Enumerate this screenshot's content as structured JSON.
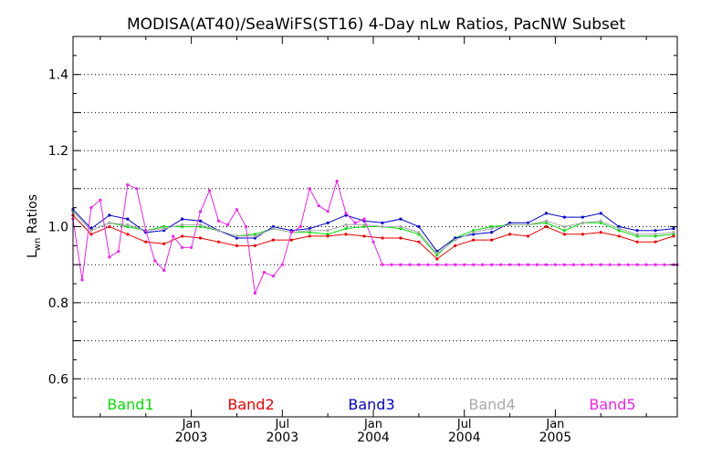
{
  "chart_data": {
    "type": "line",
    "title": "MODISA(AT40)/SeaWiFS(ST16) 4-Day nLw Ratios, PacNW Subset",
    "ylabel_main": "L",
    "ylabel_sub": "wn",
    "ylabel_rest": " Ratios",
    "ylim": [
      0.5,
      1.5
    ],
    "xlim": [
      2002.35,
      2005.67
    ],
    "grid": "horizontal-dotted",
    "yticks": [
      {
        "value": 0.6,
        "label": "0.6"
      },
      {
        "value": 0.8,
        "label": "0.8"
      },
      {
        "value": 1.0,
        "label": "1.0"
      },
      {
        "value": 1.2,
        "label": "1.2"
      },
      {
        "value": 1.4,
        "label": "1.4"
      }
    ],
    "ygrid": [
      0.6,
      0.7,
      0.8,
      0.9,
      1.0,
      1.1,
      1.2,
      1.3,
      1.4
    ],
    "xticks": [
      {
        "value": 2003.0,
        "month": "Jan",
        "year": "2003"
      },
      {
        "value": 2003.5,
        "month": "Jul",
        "year": "2003"
      },
      {
        "value": 2004.0,
        "month": "Jan",
        "year": "2004"
      },
      {
        "value": 2004.5,
        "month": "Jul",
        "year": "2004"
      },
      {
        "value": 2005.0,
        "month": "Jan",
        "year": "2005"
      }
    ],
    "x": [
      2002.35,
      2002.4,
      2002.45,
      2002.5,
      2002.55,
      2002.6,
      2002.65,
      2002.7,
      2002.75,
      2002.8,
      2002.85,
      2002.9,
      2002.95,
      2003.0,
      2003.05,
      2003.1,
      2003.15,
      2003.2,
      2003.25,
      2003.3,
      2003.35,
      2003.4,
      2003.45,
      2003.5,
      2003.55,
      2003.6,
      2003.65,
      2003.7,
      2003.75,
      2003.8,
      2003.85,
      2003.9,
      2003.95,
      2004.0,
      2004.05,
      2004.1,
      2004.15,
      2004.2,
      2004.25,
      2004.3,
      2004.35,
      2004.4,
      2004.45,
      2004.5,
      2004.55,
      2004.6,
      2004.65,
      2004.7,
      2004.75,
      2004.8,
      2004.85,
      2004.9,
      2004.95,
      2005.0,
      2005.05,
      2005.1,
      2005.15,
      2005.2,
      2005.25,
      2005.3,
      2005.35,
      2005.4,
      2005.45,
      2005.5,
      2005.55,
      2005.6,
      2005.65,
      2005.67
    ],
    "series": [
      {
        "name": "Band1",
        "color": "#00dd00",
        "x": [
          2002.35,
          2002.45,
          2002.55,
          2002.65,
          2002.75,
          2002.85,
          2002.95,
          2003.05,
          2003.15,
          2003.25,
          2003.35,
          2003.45,
          2003.55,
          2003.65,
          2003.75,
          2003.85,
          2003.95,
          2004.05,
          2004.15,
          2004.25,
          2004.35,
          2004.45,
          2004.55,
          2004.65,
          2004.75,
          2004.85,
          2004.95,
          2005.05,
          2005.15,
          2005.25,
          2005.35,
          2005.45,
          2005.55,
          2005.65
        ],
        "values": [
          1.04,
          0.99,
          1.01,
          1.0,
          0.99,
          1.0,
          1.0,
          1.0,
          0.99,
          0.975,
          0.98,
          0.995,
          0.985,
          0.985,
          0.98,
          0.995,
          1.0,
          1.0,
          0.995,
          0.98,
          0.925,
          0.97,
          0.99,
          1.0,
          1.005,
          1.005,
          1.01,
          0.99,
          1.01,
          1.01,
          0.99,
          0.975,
          0.975,
          0.98
        ]
      },
      {
        "name": "Band2",
        "color": "#ee0000",
        "x": [
          2002.35,
          2002.45,
          2002.55,
          2002.65,
          2002.75,
          2002.85,
          2002.95,
          2003.05,
          2003.15,
          2003.25,
          2003.35,
          2003.45,
          2003.55,
          2003.65,
          2003.75,
          2003.85,
          2003.95,
          2004.05,
          2004.15,
          2004.25,
          2004.35,
          2004.45,
          2004.55,
          2004.65,
          2004.75,
          2004.85,
          2004.95,
          2005.05,
          2005.15,
          2005.25,
          2005.35,
          2005.45,
          2005.55,
          2005.65
        ],
        "values": [
          1.03,
          0.98,
          1.0,
          0.98,
          0.96,
          0.955,
          0.975,
          0.97,
          0.96,
          0.95,
          0.95,
          0.965,
          0.965,
          0.975,
          0.975,
          0.98,
          0.975,
          0.97,
          0.97,
          0.96,
          0.915,
          0.95,
          0.965,
          0.965,
          0.98,
          0.975,
          1.0,
          0.98,
          0.98,
          0.985,
          0.975,
          0.96,
          0.96,
          0.975
        ]
      },
      {
        "name": "Band3",
        "color": "#0000cc",
        "x": [
          2002.35,
          2002.45,
          2002.55,
          2002.65,
          2002.75,
          2002.85,
          2002.95,
          2003.05,
          2003.15,
          2003.25,
          2003.35,
          2003.45,
          2003.55,
          2003.65,
          2003.75,
          2003.85,
          2003.95,
          2004.05,
          2004.15,
          2004.25,
          2004.35,
          2004.45,
          2004.55,
          2004.65,
          2004.75,
          2004.85,
          2004.95,
          2005.05,
          2005.15,
          2005.25,
          2005.35,
          2005.45,
          2005.55,
          2005.65
        ],
        "values": [
          1.045,
          0.995,
          1.03,
          1.02,
          0.985,
          0.99,
          1.02,
          1.015,
          0.99,
          0.97,
          0.97,
          1.0,
          0.99,
          0.995,
          1.01,
          1.03,
          1.015,
          1.01,
          1.02,
          1.0,
          0.935,
          0.97,
          0.98,
          0.985,
          1.01,
          1.01,
          1.035,
          1.025,
          1.025,
          1.035,
          1.0,
          0.99,
          0.99,
          0.995
        ]
      },
      {
        "name": "Band4",
        "color": "#aaaaaa",
        "x": [
          2002.35,
          2002.45,
          2002.55,
          2002.65,
          2002.75,
          2002.85,
          2002.95,
          2003.05,
          2003.15,
          2003.25,
          2003.35,
          2003.45,
          2003.55,
          2003.65,
          2003.75,
          2003.85,
          2003.95,
          2004.05,
          2004.15,
          2004.25,
          2004.35,
          2004.45,
          2004.55,
          2004.65,
          2004.75,
          2004.85,
          2004.95,
          2005.05,
          2005.15,
          2005.25,
          2005.35,
          2005.45,
          2005.55,
          2005.65
        ],
        "values": [
          1.04,
          0.99,
          1.01,
          1.005,
          0.99,
          0.995,
          1.005,
          1.005,
          0.99,
          0.975,
          0.975,
          0.995,
          0.985,
          0.99,
          0.99,
          1.005,
          1.005,
          1.0,
          1.0,
          0.985,
          0.93,
          0.965,
          0.985,
          0.995,
          1.005,
          1.005,
          1.015,
          1.0,
          1.01,
          1.015,
          0.995,
          0.98,
          0.98,
          0.985
        ]
      },
      {
        "name": "Band5",
        "color": "#ee22ee",
        "x": [
          2002.35,
          2002.4,
          2002.45,
          2002.5,
          2002.55,
          2002.6,
          2002.65,
          2002.7,
          2002.75,
          2002.8,
          2002.85,
          2002.9,
          2002.95,
          2003.0,
          2003.05,
          2003.1,
          2003.15,
          2003.2,
          2003.25,
          2003.3,
          2003.35,
          2003.4,
          2003.45,
          2003.5,
          2003.55,
          2003.6,
          2003.65,
          2003.7,
          2003.75,
          2003.8,
          2003.85,
          2003.9,
          2003.95,
          2004.0,
          2004.05,
          2004.1,
          2004.15,
          2004.2,
          2004.25,
          2004.3,
          2004.35,
          2004.4,
          2004.45,
          2004.5,
          2004.55,
          2004.6,
          2004.65,
          2004.7,
          2004.75,
          2004.8,
          2004.85,
          2004.9,
          2004.95,
          2005.0,
          2005.05,
          2005.1,
          2005.15,
          2005.2,
          2005.25,
          2005.3,
          2005.35,
          2005.4,
          2005.45,
          2005.5,
          2005.55,
          2005.6,
          2005.65,
          2005.67
        ],
        "values": [
          1.02,
          0.86,
          1.05,
          1.07,
          0.92,
          0.935,
          1.11,
          1.1,
          0.99,
          0.91,
          0.885,
          0.975,
          0.945,
          0.945,
          1.04,
          1.095,
          1.015,
          1.005,
          1.045,
          1.0,
          0.825,
          0.88,
          0.87,
          0.9,
          0.985,
          1.0,
          1.1,
          1.055,
          1.04,
          1.12,
          1.035,
          1.01,
          1.02,
          0.96,
          0.9,
          0.9,
          0.9,
          0.9,
          0.9,
          0.9,
          0.9,
          0.9,
          0.9,
          0.9,
          0.9,
          0.9,
          0.9,
          0.9,
          0.9,
          0.9,
          0.9,
          0.9,
          0.9,
          0.9,
          0.9,
          0.9,
          0.9,
          0.9,
          0.9,
          0.9,
          0.9,
          0.9,
          0.9,
          0.9,
          0.9,
          0.9,
          0.9,
          0.9
        ]
      }
    ],
    "legend": [
      {
        "label": "Band1",
        "color": "#00dd00"
      },
      {
        "label": "Band2",
        "color": "#ee0000"
      },
      {
        "label": "Band3",
        "color": "#0000cc"
      },
      {
        "label": "Band4",
        "color": "#aaaaaa"
      },
      {
        "label": "Band5",
        "color": "#ee22ee"
      }
    ]
  }
}
